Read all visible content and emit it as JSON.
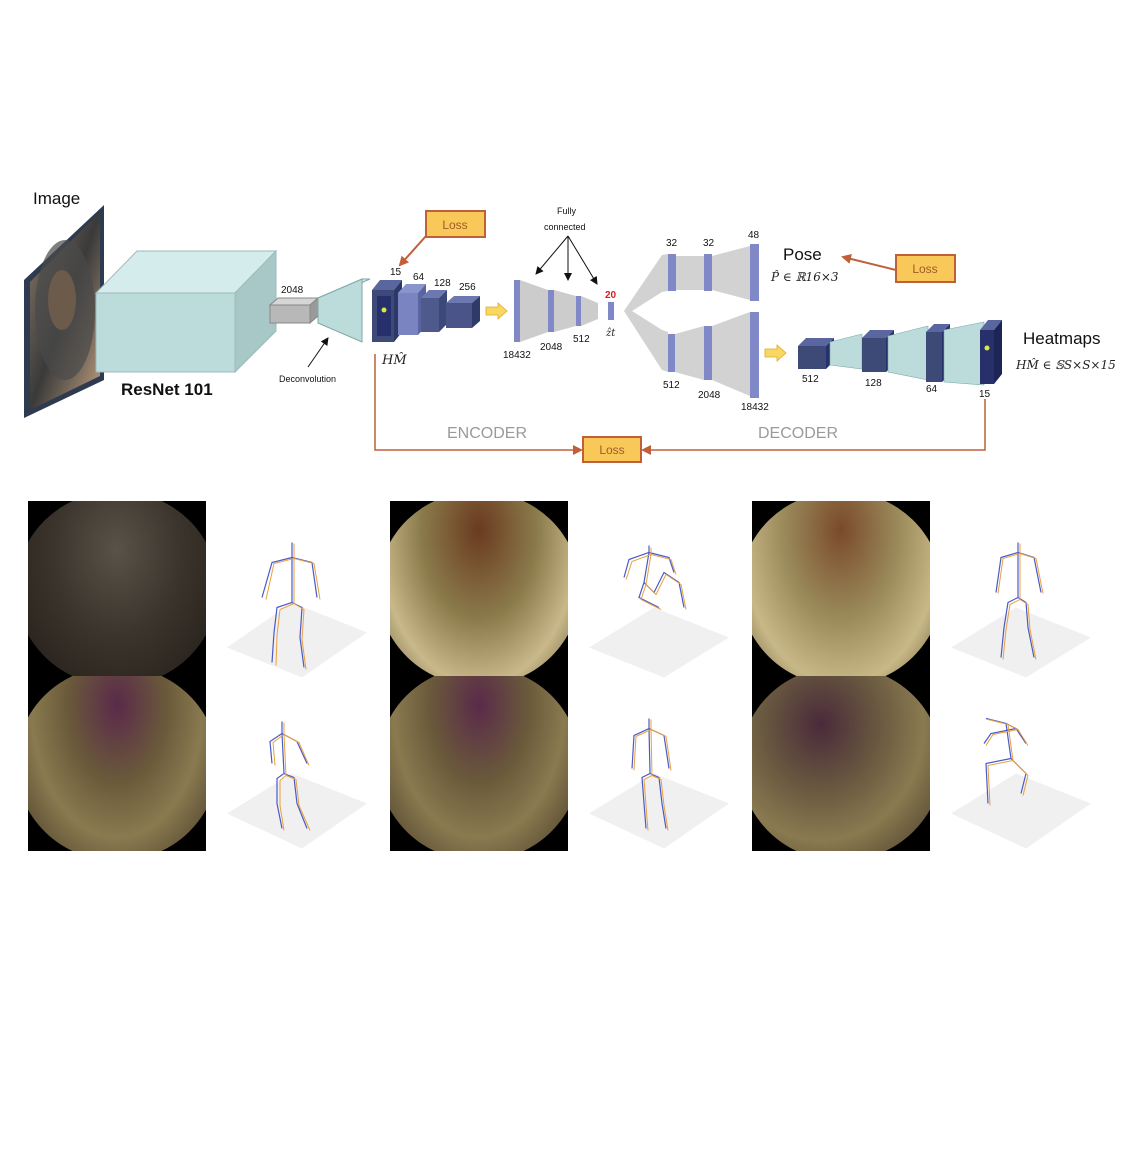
{
  "title_image": "Image",
  "backbone_label": "ResNet 101",
  "deconv_label": "Deconvolution",
  "fc_label_line1": "Fully",
  "fc_label_line2": "connected",
  "loss_label": "Loss",
  "encoder_label": "ENCODER",
  "decoder_label": "DECODER",
  "pose_label": "Pose",
  "pose_math": "P̂ ∈ ℝ16×3",
  "heatmaps_label": "Heatmaps",
  "heatmaps_math": "HM̂ ∈ 𝕊S×S×15",
  "hm_label": "HM̂",
  "z_label": "ẑt",
  "dims": {
    "resnet_out": "2048",
    "hm_channels": "15",
    "enc1": "64",
    "enc2": "128",
    "enc3": "256",
    "fc1": "18432",
    "fc2": "2048",
    "fc3": "512",
    "latent": "20",
    "pose1": "32",
    "pose2": "32",
    "pose3": "48",
    "hmdec1": "512",
    "hmdec2": "2048",
    "hmdec3": "18432",
    "dec1": "512",
    "dec2": "128",
    "dec3": "64",
    "dec4": "15"
  },
  "colors": {
    "cyan_block": "#bcdcdc",
    "navy_block": "#3d4a78",
    "blue_bar": "#8088c8",
    "gray_trap": "#c9c9c9",
    "loss_fill": "#f8c859",
    "loss_border": "#c0603a",
    "arrow_orange": "#c0603a",
    "latent_red": "#d42020"
  }
}
